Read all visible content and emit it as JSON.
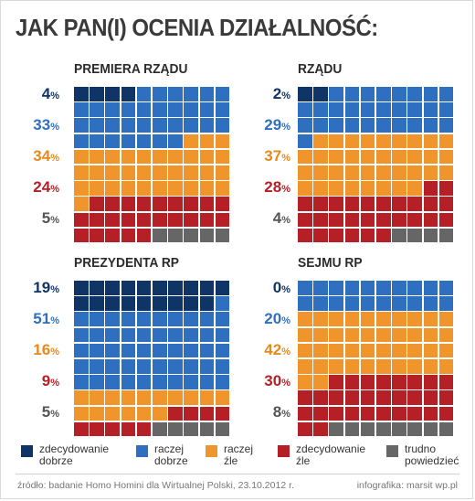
{
  "title": "JAK PAN(I) OCENIA DZIAŁALNOŚĆ:",
  "colors": {
    "zdecydowanie_dobrze": "#0f3466",
    "raczej_dobrze": "#2f6fc0",
    "raczej_zle": "#f0952c",
    "zdecydowanie_zle": "#b42025",
    "trudno_powiedziec": "#666666"
  },
  "chart_data": [
    {
      "type": "waffle",
      "title": "PREMIERA RZĄDU",
      "total_cells": 100,
      "series": [
        {
          "name": "zdecydowanie dobrze",
          "label": "4",
          "value": 4
        },
        {
          "name": "raczej dobrze",
          "label": "33",
          "value": 33
        },
        {
          "name": "raczej źle",
          "label": "34",
          "value": 34
        },
        {
          "name": "zdecydowanie źle",
          "label": "24",
          "value": 24
        },
        {
          "name": "trudno powiedzieć",
          "label": "5",
          "value": 5
        }
      ]
    },
    {
      "type": "waffle",
      "title": "RZĄDU",
      "total_cells": 100,
      "series": [
        {
          "name": "zdecydowanie dobrze",
          "label": "2",
          "value": 2
        },
        {
          "name": "raczej dobrze",
          "label": "29",
          "value": 29
        },
        {
          "name": "raczej źle",
          "label": "37",
          "value": 37
        },
        {
          "name": "zdecydowanie źle",
          "label": "28",
          "value": 28
        },
        {
          "name": "trudno powiedzieć",
          "label": "4",
          "value": 4
        }
      ]
    },
    {
      "type": "waffle",
      "title": "PREZYDENTA RP",
      "total_cells": 100,
      "series": [
        {
          "name": "zdecydowanie dobrze",
          "label": "19",
          "value": 19
        },
        {
          "name": "raczej dobrze",
          "label": "51",
          "value": 51
        },
        {
          "name": "raczej źle",
          "label": "16",
          "value": 16
        },
        {
          "name": "zdecydowanie źle",
          "label": "9",
          "value": 9
        },
        {
          "name": "trudno powiedzieć",
          "label": "5",
          "value": 5
        }
      ]
    },
    {
      "type": "waffle",
      "title": "SEJMU RP",
      "total_cells": 100,
      "series": [
        {
          "name": "zdecydowanie dobrze",
          "label": "0",
          "value": 0
        },
        {
          "name": "raczej dobrze",
          "label": "20",
          "value": 20
        },
        {
          "name": "raczej źle",
          "label": "42",
          "value": 42
        },
        {
          "name": "zdecydowanie źle",
          "label": "30",
          "value": 30
        },
        {
          "name": "trudno powiedzieć",
          "label": "8",
          "value": 8
        }
      ]
    }
  ],
  "percent_sign": "%",
  "legend": [
    {
      "key": "zdecydowanie_dobrze",
      "label": "zdecydowanie\ndobrze"
    },
    {
      "key": "raczej_dobrze",
      "label": "raczej\ndobrze"
    },
    {
      "key": "raczej_zle",
      "label": "raczej\nźle"
    },
    {
      "key": "zdecydowanie_zle",
      "label": "zdecydowanie\nźle"
    },
    {
      "key": "trudno_powiedziec",
      "label": "trudno\npowiedzieć"
    }
  ],
  "footer": {
    "source": "źródło: badanie Homo Homini dla Wirtualnej Polski, 23.10.2012 r.",
    "credit": "infografika: marsit wp.pl"
  }
}
